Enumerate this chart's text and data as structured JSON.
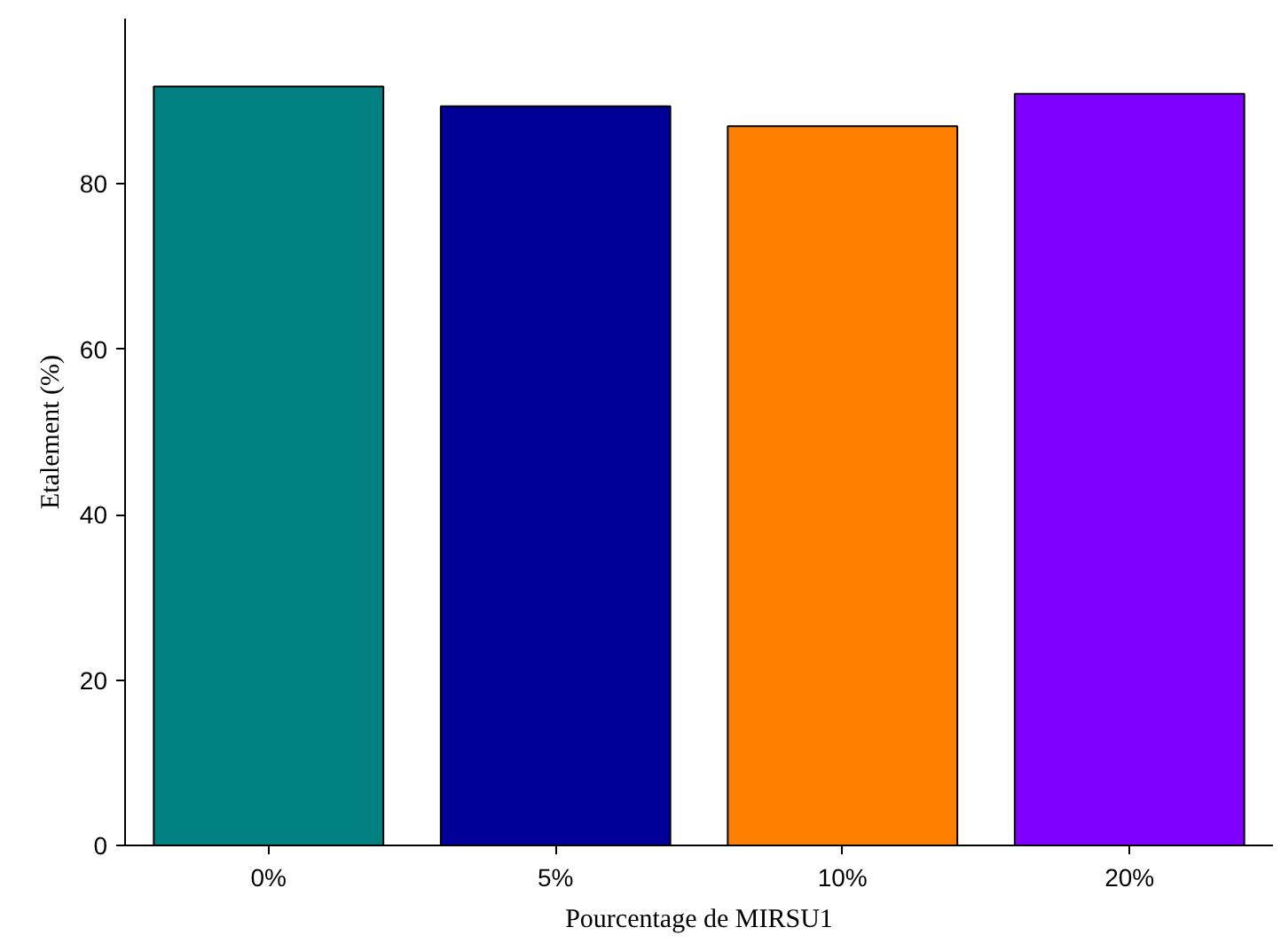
{
  "chart_data": {
    "type": "bar",
    "xlabel": "Pourcentage de MIRSU1",
    "ylabel": "Etalement (%)",
    "categories": [
      "0%",
      "5%",
      "10%",
      "20%"
    ],
    "values": [
      91.8,
      89.4,
      87.0,
      90.9
    ],
    "colors": [
      "#008080",
      "#000099",
      "#ff8000",
      "#8000ff"
    ],
    "ylim": [
      0,
      100
    ],
    "yticks": [
      0,
      20,
      40,
      60,
      80
    ],
    "grid": false
  }
}
